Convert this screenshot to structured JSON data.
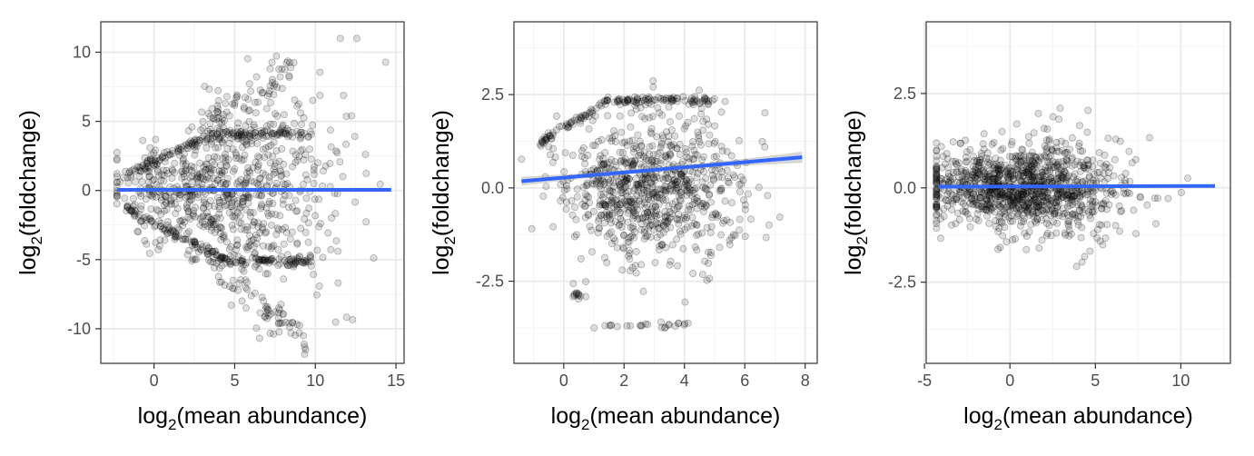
{
  "style": {
    "point_color": "#000000",
    "point_alpha": 0.13,
    "point_stroke_alpha": 0.28,
    "fit_color": "#3366FF",
    "ribbon_color": "#999999",
    "grid_major_color": "#ebebeb",
    "grid_minor_color": "#f4f4f4",
    "panel_border_color": "#333333"
  },
  "chart_data": [
    {
      "type": "scatter",
      "xlabel": {
        "prefix": "log",
        "sub": "2",
        "suffix": "(mean abundance)"
      },
      "ylabel": {
        "prefix": "log",
        "sub": "2",
        "suffix": "(foldchange)"
      },
      "xlim": [
        -3.3,
        15.5
      ],
      "ylim": [
        -12.5,
        12.2
      ],
      "xticks": [
        0,
        5,
        10,
        15
      ],
      "xtick_labels": [
        "0",
        "5",
        "10",
        "15"
      ],
      "xminor": [
        -2.5,
        2.5,
        7.5,
        12.5
      ],
      "yticks": [
        -10,
        -5,
        0,
        5,
        10
      ],
      "ytick_labels": [
        "-10",
        "-5",
        "0",
        "5",
        "10"
      ],
      "yminor": [
        -7.5,
        -2.5,
        2.5,
        7.5
      ],
      "fit": {
        "x": [
          -2.3,
          14.7
        ],
        "y": [
          0.05,
          0.05
        ],
        "se": 0
      },
      "points_gen": {
        "seed": 11,
        "n_cloud": 720,
        "cloud": {
          "xmean": 4.5,
          "xsd": 3.4,
          "xmin": -2.3,
          "xmax": 14.8,
          "ysd_base": 1.6,
          "ysd_slope": 0.25,
          "ymin": -11.3,
          "ymax": 11.0
        },
        "bands": [
          {
            "n": 170,
            "xmin": -1.8,
            "xmax": 9.8,
            "y0": 1.1,
            "slope": 0.55,
            "cap": 4.1,
            "jitter": 0.18
          },
          {
            "n": 170,
            "xmin": -1.8,
            "xmax": 9.8,
            "y0": -1.3,
            "slope": -0.6,
            "cap": -5.1,
            "jitter": 0.18
          },
          {
            "n": 70,
            "xmin": 3.5,
            "xmax": 9.5,
            "y0": -5.5,
            "slope": -0.95,
            "cap": -11.2,
            "jitter": 0.7
          },
          {
            "n": 70,
            "xmin": 3.0,
            "xmax": 8.5,
            "y0": 4.6,
            "slope": 0.75,
            "cap": 10.2,
            "jitter": 0.8
          }
        ]
      }
    },
    {
      "type": "scatter",
      "xlabel": {
        "prefix": "log",
        "sub": "2",
        "suffix": "(mean abundance)"
      },
      "ylabel": {
        "prefix": "log",
        "sub": "2",
        "suffix": "(foldchange)"
      },
      "xlim": [
        -1.65,
        8.4
      ],
      "ylim": [
        -4.7,
        4.45
      ],
      "xticks": [
        0,
        2,
        4,
        6,
        8
      ],
      "xtick_labels": [
        "0",
        "2",
        "4",
        "6",
        "8"
      ],
      "xminor": [
        -1,
        1,
        3,
        5,
        7
      ],
      "yticks": [
        -2.5,
        0,
        2.5
      ],
      "ytick_labels": [
        "-2.5",
        "0.0",
        "2.5"
      ],
      "yminor": [
        -3.75,
        -1.25,
        1.25,
        3.75
      ],
      "fit": {
        "x": [
          -1.4,
          7.9
        ],
        "y": [
          0.18,
          0.82
        ],
        "se": 0.15
      },
      "points_gen": {
        "seed": 29,
        "n_cloud": 820,
        "cloud": {
          "xmean": 2.9,
          "xsd": 1.45,
          "xmin": -1.4,
          "xmax": 7.9,
          "ysd_base": 0.75,
          "ysd_slope": 0.06,
          "ymin": -4.4,
          "ymax": 4.0
        },
        "bands": [
          {
            "n": 150,
            "xmin": -0.8,
            "xmax": 5.0,
            "y0": 1.2,
            "slope": 0.5,
            "cap": 2.35,
            "jitter": 0.06
          },
          {
            "n": 25,
            "xmin": 0.6,
            "xmax": 4.2,
            "y0": -3.68,
            "slope": 0.0,
            "cap": -3.68,
            "jitter": 0.04
          },
          {
            "n": 12,
            "xmin": 0.2,
            "xmax": 0.9,
            "y0": -2.8,
            "slope": -0.3,
            "cap": -3.1,
            "jitter": 0.08
          }
        ]
      }
    },
    {
      "type": "scatter",
      "xlabel": {
        "prefix": "log",
        "sub": "2",
        "suffix": "(mean abundance)"
      },
      "ylabel": {
        "prefix": "log",
        "sub": "2",
        "suffix": "(foldchange)"
      },
      "xlim": [
        -4.9,
        12.9
      ],
      "ylim": [
        -4.65,
        4.4
      ],
      "xticks": [
        -5,
        0,
        5,
        10
      ],
      "xtick_labels": [
        "-5",
        "0",
        "5",
        "10"
      ],
      "xminor": [
        -2.5,
        2.5,
        7.5,
        12.5
      ],
      "yticks": [
        -2.5,
        0,
        2.5
      ],
      "ytick_labels": [
        "-2.5",
        "0.0",
        "2.5"
      ],
      "yminor": [
        -3.75,
        -1.25,
        1.25,
        3.75
      ],
      "fit": {
        "x": [
          -4.2,
          12.0
        ],
        "y": [
          0.03,
          0.05
        ],
        "se": 0
      },
      "points_gen": {
        "seed": 47,
        "n_cloud": 1150,
        "cloud": {
          "xmean": 0.8,
          "xsd": 2.9,
          "xmin": -4.3,
          "xmax": 12.0,
          "ysd_base": 0.55,
          "ysd_slope": 0.03,
          "ymin": -4.3,
          "ymax": 4.0
        },
        "bands": []
      }
    }
  ]
}
